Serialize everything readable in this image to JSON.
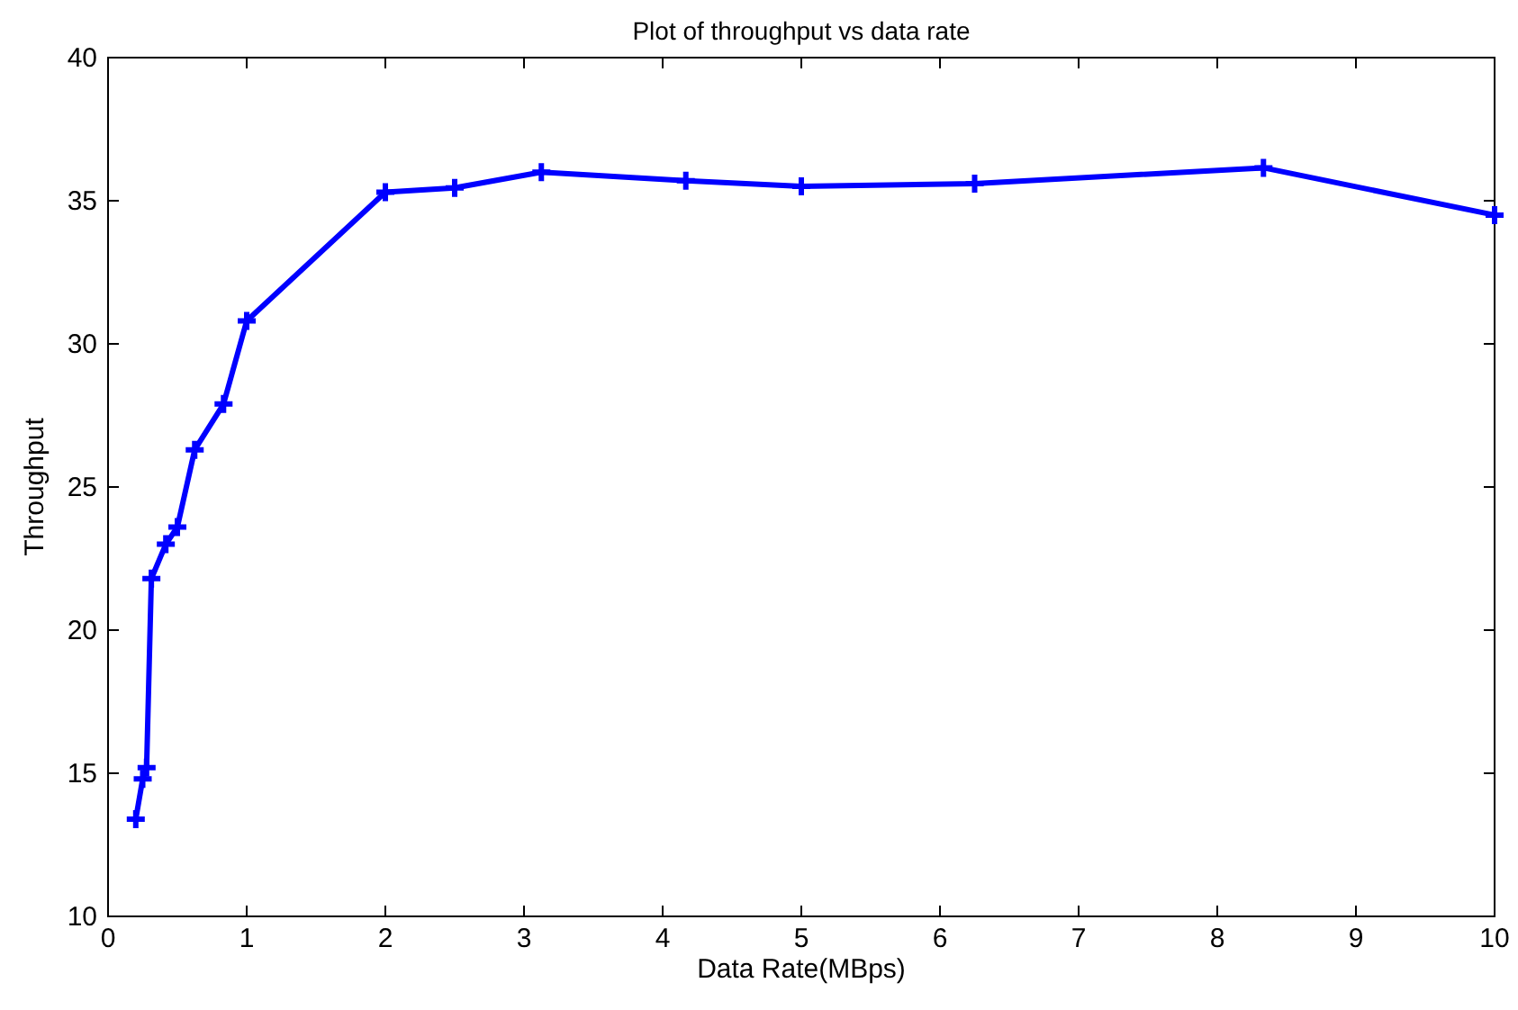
{
  "chart_data": {
    "type": "line",
    "title": "Plot of throughput vs data rate",
    "xlabel": "Data Rate(MBps)",
    "ylabel": "Throughput",
    "x": [
      0.2,
      0.25,
      0.278,
      0.3125,
      0.4167,
      0.5,
      0.625,
      0.833,
      1,
      2,
      2.5,
      3.125,
      4.167,
      5,
      6.25,
      8.333,
      10
    ],
    "series": [
      {
        "color": "#0000ff",
        "values": [
          13.4,
          14.8,
          15.2,
          21.8,
          23.0,
          23.6,
          26.3,
          27.9,
          30.8,
          35.3,
          35.45,
          36.0,
          35.7,
          35.5,
          35.6,
          36.15,
          34.5
        ]
      }
    ],
    "xlim": [
      0,
      10
    ],
    "xticks": [
      0,
      1,
      2,
      3,
      4,
      5,
      6,
      7,
      8,
      9,
      10
    ],
    "ylim": [
      10,
      40
    ],
    "yticks": [
      10,
      15,
      20,
      25,
      30,
      35,
      40
    ],
    "grid": false,
    "marker": "cross",
    "line_style": "solid"
  }
}
